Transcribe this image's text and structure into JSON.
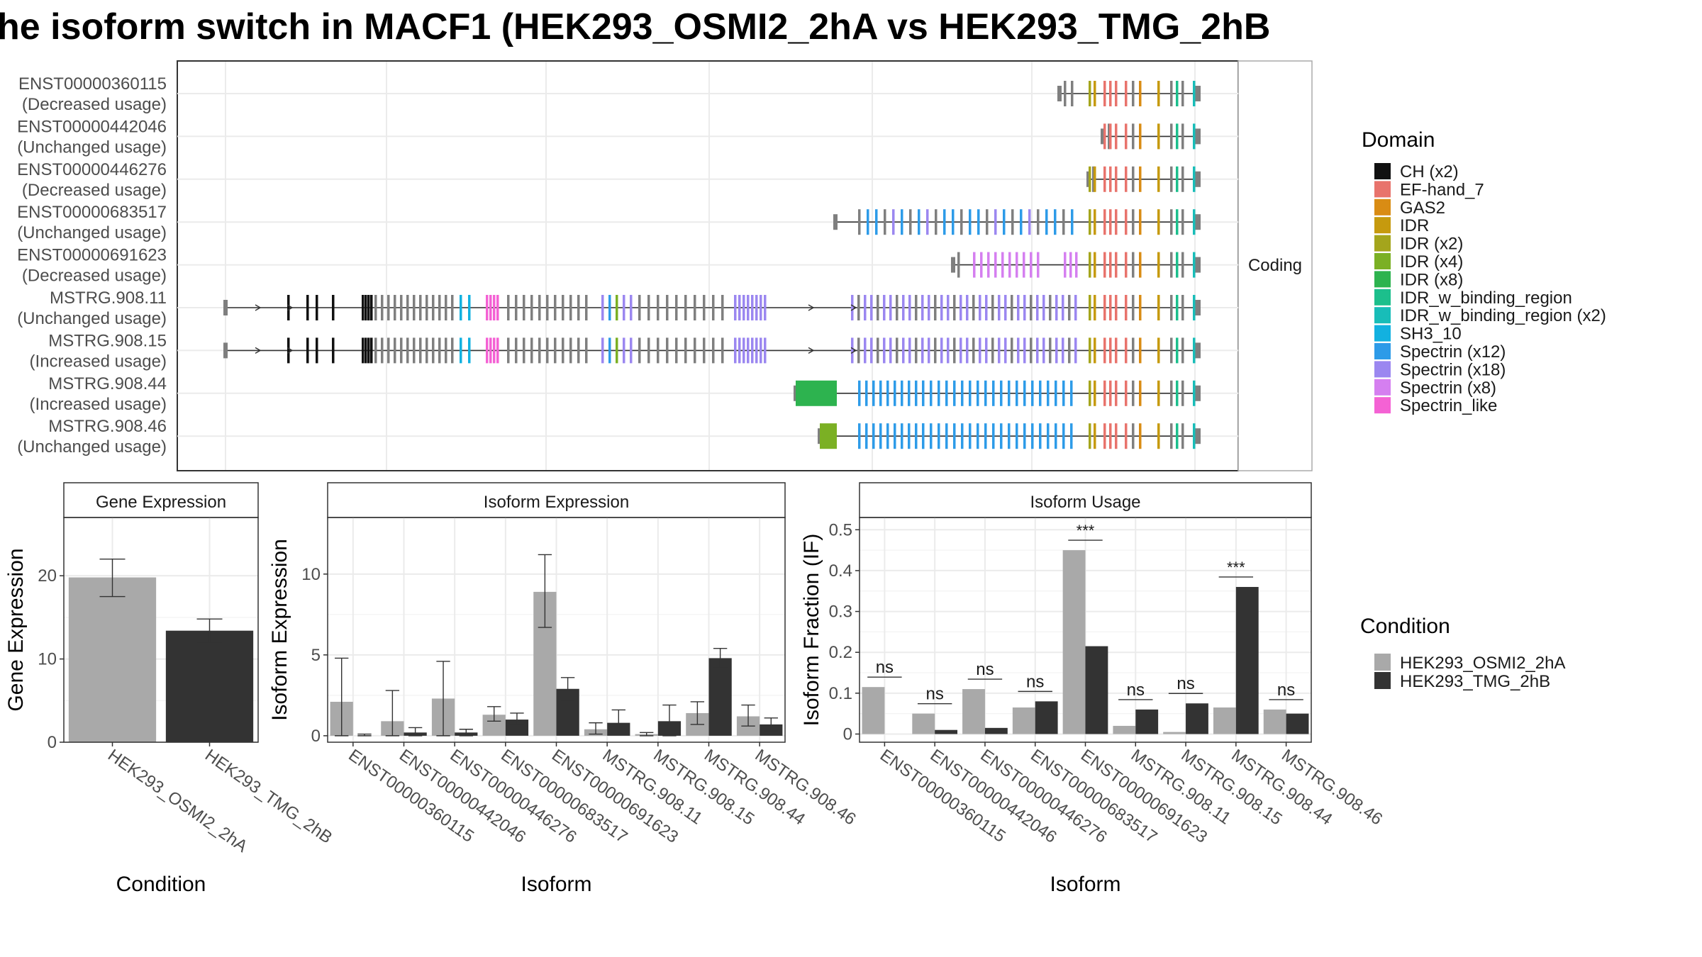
{
  "title": "he isoform switch in MACF1 (HEK293_OSMI2_2hA vs HEK293_TMG_2hB",
  "colors": {
    "cond_a": "#a9a9a9",
    "cond_b": "#333333",
    "grid": "#ebebeb",
    "panel_border": "#333333",
    "strip_fill": "#ffffff"
  },
  "conditions": [
    "HEK293_OSMI2_2hA",
    "HEK293_TMG_2hB"
  ],
  "legend_condition": {
    "title": "Condition",
    "items": [
      {
        "label": "HEK293_OSMI2_2hA",
        "color": "#a9a9a9"
      },
      {
        "label": "HEK293_TMG_2hB",
        "color": "#333333"
      }
    ]
  },
  "legend_domain": {
    "title": "Domain",
    "items": [
      {
        "label": "CH (x2)",
        "color": "#111111"
      },
      {
        "label": "EF-hand_7",
        "color": "#e8736c"
      },
      {
        "label": "GAS2",
        "color": "#d98c14"
      },
      {
        "label": "IDR",
        "color": "#c69a0e"
      },
      {
        "label": "IDR (x2)",
        "color": "#a4a51c"
      },
      {
        "label": "IDR (x4)",
        "color": "#7bb024"
      },
      {
        "label": "IDR (x8)",
        "color": "#2db34f"
      },
      {
        "label": "IDR_w_binding_region",
        "color": "#1cbf8c"
      },
      {
        "label": "IDR_w_binding_region (x2)",
        "color": "#18bdb8"
      },
      {
        "label": "SH3_10",
        "color": "#12b1e0"
      },
      {
        "label": "Spectrin (x12)",
        "color": "#2d9be8"
      },
      {
        "label": "Spectrin (x18)",
        "color": "#9b87f0"
      },
      {
        "label": "Spectrin (x8)",
        "color": "#d57ff0"
      },
      {
        "label": "Spectrin_like",
        "color": "#f462d4"
      }
    ]
  },
  "structure": {
    "strip_label": "Coding",
    "isoforms": [
      {
        "name": "ENST00000360115",
        "usage": "(Decreased usage)"
      },
      {
        "name": "ENST00000442046",
        "usage": "(Unchanged usage)"
      },
      {
        "name": "ENST00000446276",
        "usage": "(Decreased usage)"
      },
      {
        "name": "ENST00000683517",
        "usage": "(Unchanged usage)"
      },
      {
        "name": "ENST00000691623",
        "usage": "(Decreased usage)"
      },
      {
        "name": "MSTRG.908.11",
        "usage": "(Unchanged usage)"
      },
      {
        "name": "MSTRG.908.15",
        "usage": "(Increased usage)"
      },
      {
        "name": "MSTRG.908.44",
        "usage": "(Increased usage)"
      },
      {
        "name": "MSTRG.908.46",
        "usage": "(Unchanged usage)"
      }
    ]
  },
  "chart_data": [
    {
      "type": "bar",
      "title": "Gene Expression",
      "xlabel": "Condition",
      "ylabel": "Gene Expression",
      "ylim": [
        0,
        27
      ],
      "yticks": [
        0,
        10,
        20
      ],
      "categories": [
        "HEK293_OSMI2_2hA",
        "HEK293_TMG_2hB"
      ],
      "values": [
        19.8,
        13.4
      ],
      "error": [
        [
          17.5,
          22.0
        ],
        [
          12.0,
          14.8
        ]
      ]
    },
    {
      "type": "bar",
      "title": "Isoform Expression",
      "xlabel": "Isoform",
      "ylabel": "Isoform Expression",
      "ylim": [
        -0.4,
        13.5
      ],
      "yticks": [
        0,
        5,
        10
      ],
      "categories": [
        "ENST00000360115",
        "ENST00000442046",
        "ENST00000446276",
        "ENST00000683517",
        "ENST00000691623",
        "MSTRG.908.11",
        "MSTRG.908.15",
        "MSTRG.908.44",
        "MSTRG.908.46"
      ],
      "series": [
        {
          "name": "HEK293_OSMI2_2hA",
          "values": [
            2.1,
            0.9,
            2.3,
            1.3,
            8.9,
            0.4,
            0.1,
            1.4,
            1.2
          ],
          "error": [
            [
              0,
              4.8
            ],
            [
              0,
              2.8
            ],
            [
              0,
              4.6
            ],
            [
              0.9,
              1.8
            ],
            [
              6.7,
              11.2
            ],
            [
              0.1,
              0.8
            ],
            [
              0,
              0.2
            ],
            [
              0.7,
              2.1
            ],
            [
              0.6,
              1.9
            ]
          ]
        },
        {
          "name": "HEK293_TMG_2hB",
          "values": [
            0.0,
            0.2,
            0.2,
            1.0,
            2.9,
            0.8,
            0.9,
            4.8,
            0.7
          ],
          "error": [
            [
              0,
              0.1
            ],
            [
              0,
              0.5
            ],
            [
              0,
              0.4
            ],
            [
              0.7,
              1.4
            ],
            [
              2.2,
              3.6
            ],
            [
              0.2,
              1.6
            ],
            [
              0,
              1.9
            ],
            [
              4.2,
              5.4
            ],
            [
              0.3,
              1.1
            ]
          ]
        }
      ]
    },
    {
      "type": "bar",
      "title": "Isoform Usage",
      "xlabel": "Isoform",
      "ylabel": "Isoform Fraction (IF)",
      "ylim": [
        -0.02,
        0.53
      ],
      "yticks": [
        0.0,
        0.1,
        0.2,
        0.3,
        0.4,
        0.5
      ],
      "categories": [
        "ENST00000360115",
        "ENST00000442046",
        "ENST00000446276",
        "ENST00000683517",
        "ENST00000691623",
        "MSTRG.908.11",
        "MSTRG.908.15",
        "MSTRG.908.44",
        "MSTRG.908.46"
      ],
      "series": [
        {
          "name": "HEK293_OSMI2_2hA",
          "values": [
            0.115,
            0.05,
            0.11,
            0.065,
            0.45,
            0.02,
            0.005,
            0.065,
            0.06
          ]
        },
        {
          "name": "HEK293_TMG_2hB",
          "values": [
            0.0,
            0.01,
            0.015,
            0.08,
            0.215,
            0.06,
            0.075,
            0.36,
            0.05
          ]
        }
      ],
      "significance": [
        "ns",
        "ns",
        "ns",
        "ns",
        "***",
        "ns",
        "ns",
        "***",
        "ns"
      ]
    }
  ]
}
